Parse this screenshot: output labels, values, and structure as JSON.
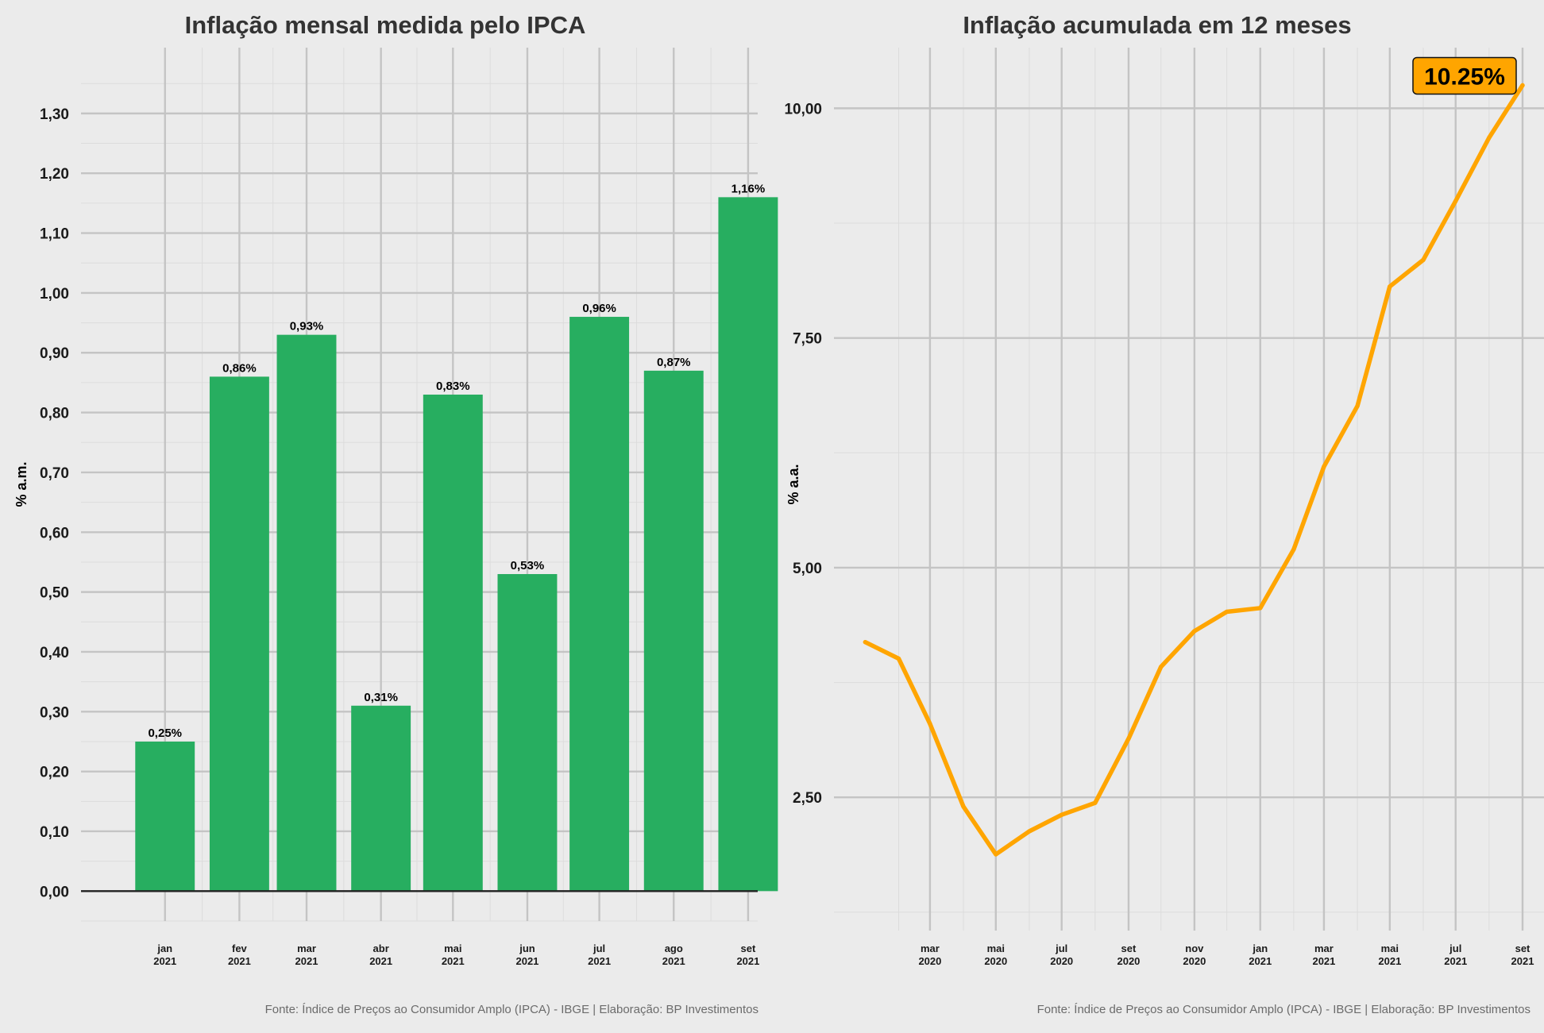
{
  "chart_data": [
    {
      "type": "bar",
      "title": "Inflação mensal medida pelo IPCA",
      "ylabel": "% a.m.",
      "xlabel": "",
      "categories": [
        [
          "jan",
          "2021"
        ],
        [
          "fev",
          "2021"
        ],
        [
          "mar",
          "2021"
        ],
        [
          "abr",
          "2021"
        ],
        [
          "mai",
          "2021"
        ],
        [
          "jun",
          "2021"
        ],
        [
          "jul",
          "2021"
        ],
        [
          "ago",
          "2021"
        ],
        [
          "set",
          "2021"
        ]
      ],
      "dates": [
        "2021-01",
        "2021-02",
        "2021-03",
        "2021-04",
        "2021-05",
        "2021-06",
        "2021-07",
        "2021-08",
        "2021-09"
      ],
      "values": [
        0.25,
        0.86,
        0.93,
        0.31,
        0.83,
        0.53,
        0.96,
        0.87,
        1.16
      ],
      "data_labels": [
        "0,25%",
        "0,86%",
        "0,93%",
        "0,31%",
        "0,83%",
        "0,53%",
        "0,96%",
        "0,87%",
        "1,16%"
      ],
      "yticks": [
        "0,00",
        "0,10",
        "0,20",
        "0,30",
        "0,40",
        "0,50",
        "0,60",
        "0,70",
        "0,80",
        "0,90",
        "1,00",
        "1,10",
        "1,20",
        "1,30"
      ],
      "ytick_values": [
        0,
        0.1,
        0.2,
        0.3,
        0.4,
        0.5,
        0.6,
        0.7,
        0.8,
        0.9,
        1.0,
        1.1,
        1.2,
        1.3
      ],
      "ylim": [
        -0.05,
        1.41
      ],
      "xlim": [
        "2020-12-12",
        "2021-09-20"
      ],
      "grid": true,
      "bar_color": "#27ae60",
      "caption": "Fonte: Índice de Preços ao Consumidor Amplo (IPCA) - IBGE | Elaboração: BP Investimentos"
    },
    {
      "type": "line",
      "title": "Inflação acumulada em 12 meses",
      "ylabel": "% a.a.",
      "xlabel": "",
      "x": [
        "2020-01",
        "2020-02",
        "2020-03",
        "2020-04",
        "2020-05",
        "2020-06",
        "2020-07",
        "2020-08",
        "2020-09",
        "2020-10",
        "2020-11",
        "2020-12",
        "2021-01",
        "2021-02",
        "2021-03",
        "2021-04",
        "2021-05",
        "2021-06",
        "2021-07",
        "2021-08",
        "2021-09"
      ],
      "values": [
        4.19,
        4.01,
        3.3,
        2.4,
        1.88,
        2.13,
        2.31,
        2.44,
        3.14,
        3.92,
        4.31,
        4.52,
        4.56,
        5.2,
        6.1,
        6.76,
        8.06,
        8.35,
        8.99,
        9.68,
        10.25
      ],
      "xticks": [
        [
          "mar",
          "2020"
        ],
        [
          "mai",
          "2020"
        ],
        [
          "jul",
          "2020"
        ],
        [
          "set",
          "2020"
        ],
        [
          "nov",
          "2020"
        ],
        [
          "jan",
          "2021"
        ],
        [
          "mar",
          "2021"
        ],
        [
          "mai",
          "2021"
        ],
        [
          "jul",
          "2021"
        ],
        [
          "set",
          "2021"
        ]
      ],
      "xtick_dates": [
        "2020-03",
        "2020-05",
        "2020-07",
        "2020-09",
        "2020-11",
        "2021-01",
        "2021-03",
        "2021-05",
        "2021-07",
        "2021-09"
      ],
      "yticks": [
        "2,50",
        "5,00",
        "7,50",
        "10,00"
      ],
      "ytick_values": [
        2.5,
        5.0,
        7.5,
        10.0
      ],
      "ylim": [
        1.05,
        10.66
      ],
      "grid": true,
      "line_color": "#ffa500",
      "annotation": {
        "text": "10.25%",
        "at": "2021-09",
        "value": 10.25,
        "fill": "#ffa500"
      },
      "caption": "Fonte: Índice de Preços ao Consumidor Amplo (IPCA) - IBGE | Elaboração: BP Investimentos"
    }
  ],
  "colors": {
    "background": "#ebebeb",
    "grid_major": "#c4c4c4",
    "grid_minor": "#dcdcdc",
    "text": "#1a1a1a",
    "caption": "#6b6b6b"
  }
}
